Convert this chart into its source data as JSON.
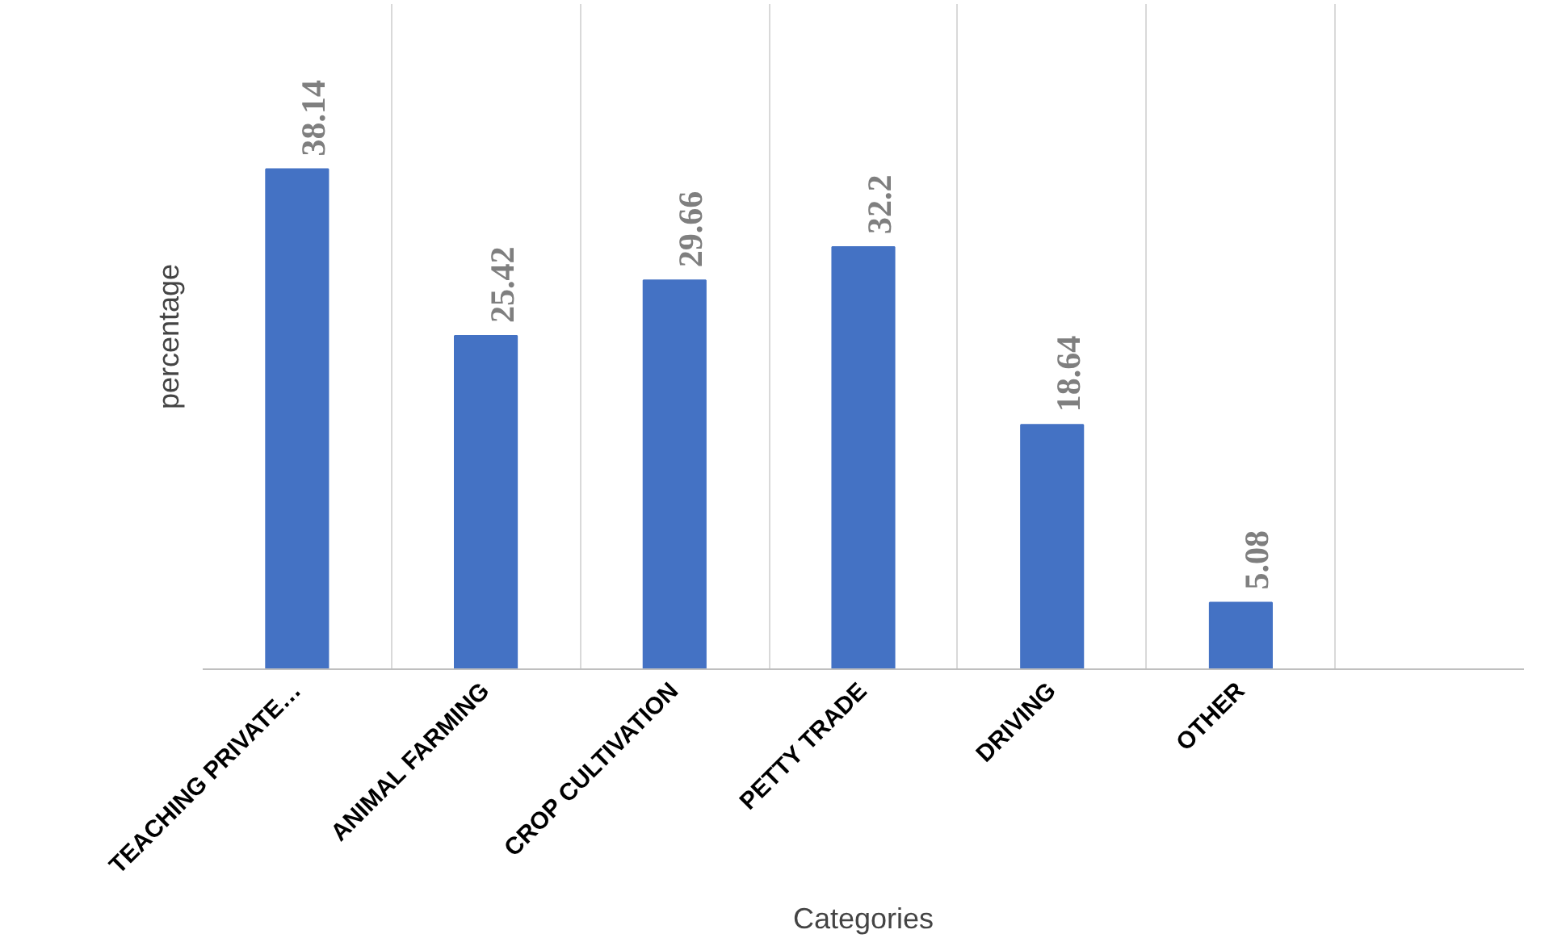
{
  "chart_data": {
    "type": "bar",
    "xlabel": "Categories",
    "ylabel": "percentage",
    "categories": [
      "TEACHING PRIVATE…",
      "ANIMAL FARMING",
      "CROP CULTIVATION",
      "PETTY TRADE",
      "DRIVING",
      "OTHER",
      null
    ],
    "values": [
      38.14,
      25.42,
      29.66,
      32.2,
      18.64,
      5.08,
      null
    ],
    "color": "#4472c4",
    "data_labels": true,
    "grid": "x"
  }
}
